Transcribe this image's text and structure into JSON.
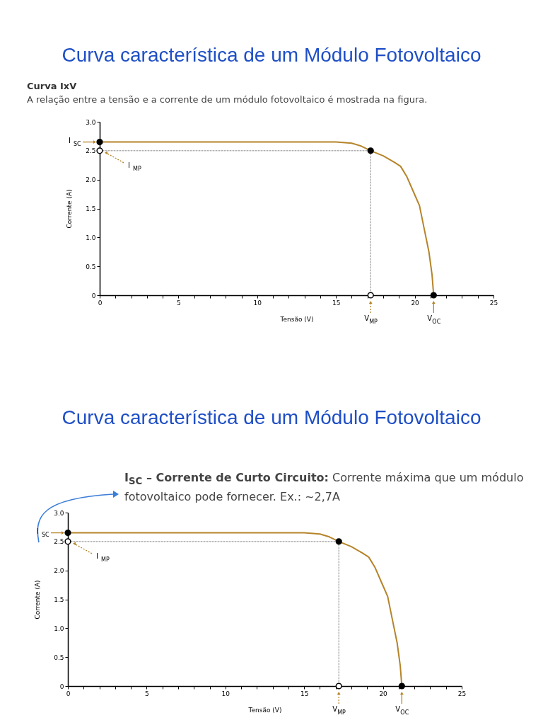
{
  "chart_data": [
    {
      "type": "line",
      "title": "Curva característica de um Módulo Fotovoltaico",
      "subtitle": "Curva IxV",
      "xlabel": "Tensão (V)",
      "ylabel": "Corrente  (A)",
      "xlim": [
        0,
        25
      ],
      "ylim": [
        0,
        3
      ],
      "xticks": [
        0,
        {
          "value": 1,
          "label": null
        },
        {
          "value": 2,
          "label": null
        },
        {
          "value": 3,
          "label": null
        },
        {
          "value": 4,
          "label": null
        },
        5,
        {
          "value": 6,
          "label": null
        },
        {
          "value": 7,
          "label": null
        },
        {
          "value": 8,
          "label": null
        },
        {
          "value": 9,
          "label": null
        },
        10,
        {
          "value": 11,
          "label": null
        },
        {
          "value": 12,
          "label": null
        },
        {
          "value": 13,
          "label": null
        },
        {
          "value": 14,
          "label": null
        },
        15,
        {
          "value": 16,
          "label": null
        },
        {
          "value": 17,
          "label": null
        },
        {
          "value": 18,
          "label": null
        },
        {
          "value": 19,
          "label": null
        },
        20,
        {
          "value": 21,
          "label": null
        },
        {
          "value": 22,
          "label": null
        },
        {
          "value": 23,
          "label": null
        },
        {
          "value": 24,
          "label": null
        },
        25
      ],
      "yticks": [
        0,
        0.5,
        {
          "value": 1,
          "label": "1.0"
        },
        1.5,
        {
          "value": 2,
          "label": "2.0"
        },
        2.5,
        {
          "value": 3,
          "label": "3.0"
        }
      ],
      "grid": false,
      "series": [
        {
          "type": "line",
          "color": "#b5842a",
          "x": [
            0,
            5,
            10,
            15,
            16,
            16.6,
            17.2,
            18,
            18.7,
            19.1,
            19.5,
            19.9,
            20.3,
            20.6,
            20.9,
            21.1,
            21.2
          ],
          "values": [
            2.65,
            2.65,
            2.65,
            2.65,
            2.63,
            2.58,
            2.5,
            2.41,
            2.3,
            2.23,
            2.05,
            1.8,
            1.55,
            1.15,
            0.75,
            0.35,
            0
          ]
        },
        {
          "type": "line",
          "line_style": "dotted",
          "color": "#888888",
          "x": [
            0,
            17.2
          ],
          "values": [
            2.5,
            2.5
          ]
        },
        {
          "type": "line",
          "line_style": "dotted",
          "color": "#888888",
          "x": [
            17.2,
            17.2
          ],
          "values": [
            2.5,
            0
          ]
        },
        {
          "type": "scatter",
          "marker": "circle",
          "color": "#000000",
          "x": [
            0,
            17.2,
            21.2
          ],
          "values": [
            2.65,
            2.5,
            0
          ]
        },
        {
          "type": "scatter",
          "marker": "circle",
          "color": "#ffffff",
          "x": [
            0,
            17.2
          ],
          "values": [
            2.5,
            0
          ]
        }
      ],
      "annotations": [
        "A relação entre a tensão e a corrente de um módulo fotovoltaico é mostrada na figura.",
        {
          "text": "I$_{SC}$",
          "x": 0,
          "y": 2.65
        },
        {
          "text": "I$_{MP}$",
          "x": 0,
          "y": 2.5
        },
        {
          "text": "V$_{MP}$",
          "x": 17.2,
          "y": 0
        },
        {
          "text": "V$_{OC}$",
          "x": 21.2,
          "y": 0
        }
      ]
    },
    {
      "type": "line",
      "title": "Curva característica de um Módulo Fotovoltaico",
      "xlabel": "Tensão (V)",
      "ylabel": "Corrente  (A)",
      "xlim": [
        0,
        25
      ],
      "ylim": [
        0,
        3
      ],
      "xticks": [
        0,
        {
          "value": 1,
          "label": null
        },
        {
          "value": 2,
          "label": null
        },
        {
          "value": 3,
          "label": null
        },
        {
          "value": 4,
          "label": null
        },
        5,
        {
          "value": 6,
          "label": null
        },
        {
          "value": 7,
          "label": null
        },
        {
          "value": 8,
          "label": null
        },
        {
          "value": 9,
          "label": null
        },
        10,
        {
          "value": 11,
          "label": null
        },
        {
          "value": 12,
          "label": null
        },
        {
          "value": 13,
          "label": null
        },
        {
          "value": 14,
          "label": null
        },
        15,
        {
          "value": 16,
          "label": null
        },
        {
          "value": 17,
          "label": null
        },
        {
          "value": 18,
          "label": null
        },
        {
          "value": 19,
          "label": null
        },
        20,
        {
          "value": 21,
          "label": null
        },
        {
          "value": 22,
          "label": null
        },
        {
          "value": 23,
          "label": null
        },
        {
          "value": 24,
          "label": null
        },
        25
      ],
      "yticks": [
        0,
        0.5,
        {
          "value": 1,
          "label": "1.0"
        },
        1.5,
        {
          "value": 2,
          "label": "2.0"
        },
        2.5,
        {
          "value": 3,
          "label": "3.0"
        }
      ],
      "grid": false,
      "series": [
        {
          "type": "line",
          "color": "#b5842a",
          "x": [
            0,
            5,
            10,
            15,
            16,
            16.6,
            17.2,
            18,
            18.7,
            19.1,
            19.5,
            19.9,
            20.3,
            20.6,
            20.9,
            21.1,
            21.2
          ],
          "values": [
            2.65,
            2.65,
            2.65,
            2.65,
            2.63,
            2.58,
            2.5,
            2.41,
            2.3,
            2.23,
            2.05,
            1.8,
            1.55,
            1.15,
            0.75,
            0.35,
            0
          ]
        },
        {
          "type": "line",
          "line_style": "dotted",
          "color": "#888888",
          "x": [
            0,
            17.2
          ],
          "values": [
            2.5,
            2.5
          ]
        },
        {
          "type": "line",
          "line_style": "dotted",
          "color": "#888888",
          "x": [
            17.2,
            17.2
          ],
          "values": [
            2.5,
            0
          ]
        },
        {
          "type": "scatter",
          "marker": "circle",
          "color": "#000000",
          "x": [
            0,
            17.2,
            21.2
          ],
          "values": [
            2.65,
            2.5,
            0
          ]
        },
        {
          "type": "scatter",
          "marker": "circle",
          "color": "#ffffff",
          "x": [
            0,
            17.2
          ],
          "values": [
            2.5,
            0
          ]
        }
      ],
      "annotations": [
        "I$_{SC}$ – Corrente de Curto Circuito: Corrente máxima que um módulo fotovoltaico pode fornecer. Ex.: ~2,7A",
        {
          "text": "I$_{SC}$",
          "x": 0,
          "y": 2.65
        },
        {
          "text": "I$_{MP}$",
          "x": 0,
          "y": 2.5
        },
        {
          "text": "V$_{MP}$",
          "x": 17.2,
          "y": 0
        },
        {
          "text": "V$_{OC}$",
          "x": 21.2,
          "y": 0
        }
      ]
    }
  ]
}
